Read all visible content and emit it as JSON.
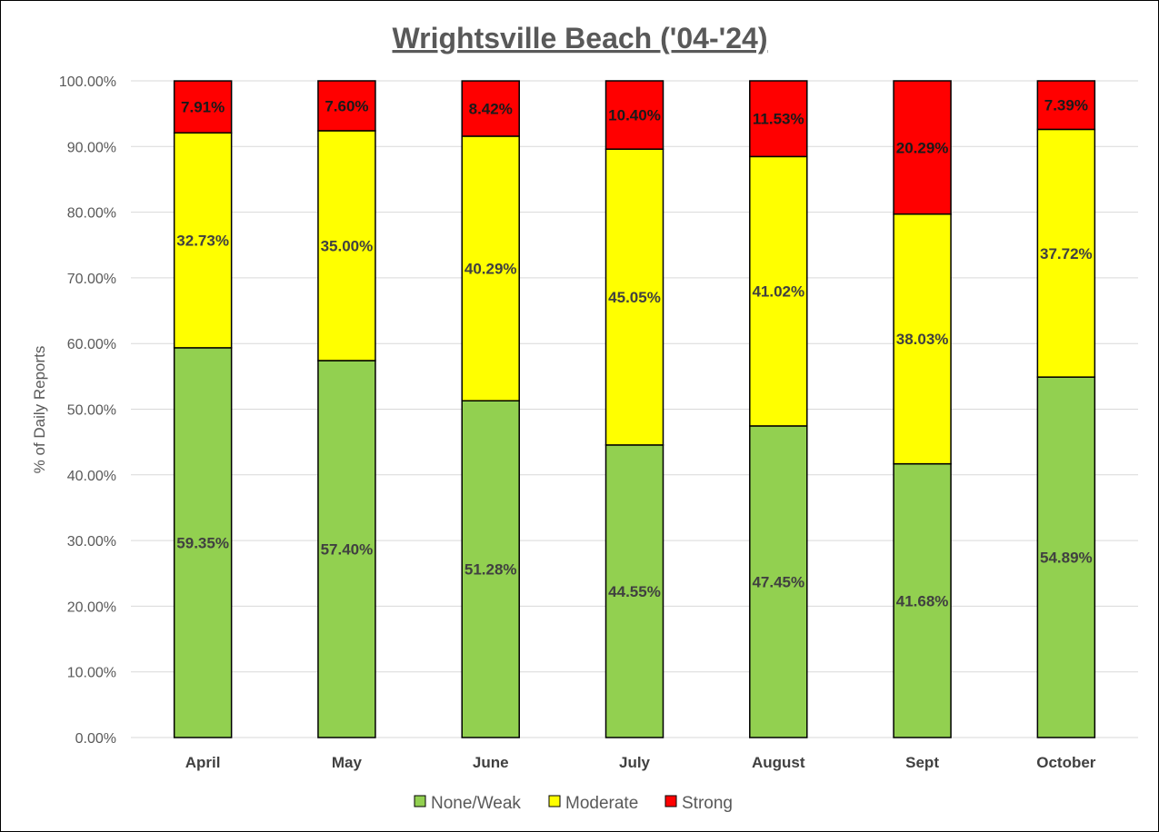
{
  "chart_data": {
    "type": "bar",
    "stacked": true,
    "title": "Wrightsville Beach ('04-'24)",
    "xlabel": "",
    "ylabel": "% of Daily Reports",
    "ylim": [
      0,
      100
    ],
    "yticks": [
      "0.00%",
      "10.00%",
      "20.00%",
      "30.00%",
      "40.00%",
      "50.00%",
      "60.00%",
      "70.00%",
      "80.00%",
      "90.00%",
      "100.00%"
    ],
    "grid": true,
    "legend_position": "bottom",
    "categories": [
      "April",
      "May",
      "June",
      "July",
      "August",
      "Sept",
      "October"
    ],
    "series": [
      {
        "name": "None/Weak",
        "color": "#92d050",
        "values": [
          59.35,
          57.4,
          51.28,
          44.55,
          47.45,
          41.68,
          54.89
        ],
        "labels": [
          "59.35%",
          "57.40%",
          "51.28%",
          "44.55%",
          "47.45%",
          "41.68%",
          "54.89%"
        ]
      },
      {
        "name": "Moderate",
        "color": "#ffff00",
        "values": [
          32.73,
          35.0,
          40.29,
          45.05,
          41.02,
          38.03,
          37.72
        ],
        "labels": [
          "32.73%",
          "35.00%",
          "40.29%",
          "45.05%",
          "41.02%",
          "38.03%",
          "37.72%"
        ]
      },
      {
        "name": "Strong",
        "color": "#ff0000",
        "values": [
          7.91,
          7.6,
          8.42,
          10.4,
          11.53,
          20.29,
          7.39
        ],
        "labels": [
          "7.91%",
          "7.60%",
          "8.42%",
          "10.40%",
          "11.53%",
          "20.29%",
          "7.39%"
        ]
      }
    ]
  }
}
